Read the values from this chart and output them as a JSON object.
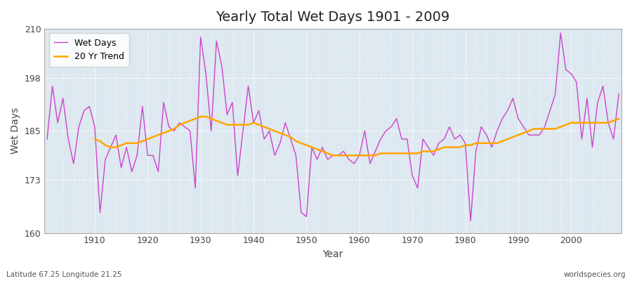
{
  "title": "Yearly Total Wet Days 1901 - 2009",
  "xlabel": "Year",
  "ylabel": "Wet Days",
  "footnote_left": "Latitude 67.25 Longitude 21.25",
  "footnote_right": "worldspecies.org",
  "ylim": [
    160,
    210
  ],
  "yticks": [
    160,
    173,
    185,
    198,
    210
  ],
  "xticks": [
    1910,
    1920,
    1930,
    1940,
    1950,
    1960,
    1970,
    1980,
    1990,
    2000
  ],
  "line_color": "#cc44cc",
  "trend_color": "#FFA500",
  "plot_bg_color": "#dde8f0",
  "fig_bg_color": "#ffffff",
  "years": [
    1901,
    1902,
    1903,
    1904,
    1905,
    1906,
    1907,
    1908,
    1909,
    1910,
    1911,
    1912,
    1913,
    1914,
    1915,
    1916,
    1917,
    1918,
    1919,
    1920,
    1921,
    1922,
    1923,
    1924,
    1925,
    1926,
    1927,
    1928,
    1929,
    1930,
    1931,
    1932,
    1933,
    1934,
    1935,
    1936,
    1937,
    1938,
    1939,
    1940,
    1941,
    1942,
    1943,
    1944,
    1945,
    1946,
    1947,
    1948,
    1949,
    1950,
    1951,
    1952,
    1953,
    1954,
    1955,
    1956,
    1957,
    1958,
    1959,
    1960,
    1961,
    1962,
    1963,
    1964,
    1965,
    1966,
    1967,
    1968,
    1969,
    1970,
    1971,
    1972,
    1973,
    1974,
    1975,
    1976,
    1977,
    1978,
    1979,
    1980,
    1981,
    1982,
    1983,
    1984,
    1985,
    1986,
    1987,
    1988,
    1989,
    1990,
    1991,
    1992,
    1993,
    1994,
    1995,
    1996,
    1997,
    1998,
    1999,
    2000,
    2001,
    2002,
    2003,
    2004,
    2005,
    2006,
    2007,
    2008,
    2009
  ],
  "wet_days": [
    183,
    196,
    187,
    193,
    183,
    177,
    186,
    190,
    191,
    186,
    165,
    178,
    181,
    184,
    176,
    181,
    175,
    179,
    191,
    179,
    179,
    175,
    192,
    186,
    185,
    187,
    186,
    185,
    171,
    208,
    199,
    185,
    207,
    201,
    189,
    192,
    174,
    185,
    196,
    187,
    190,
    183,
    185,
    179,
    182,
    187,
    183,
    179,
    165,
    164,
    181,
    178,
    181,
    178,
    179,
    179,
    180,
    178,
    177,
    179,
    185,
    177,
    180,
    183,
    185,
    186,
    188,
    183,
    183,
    174,
    171,
    183,
    181,
    179,
    182,
    183,
    186,
    183,
    184,
    182,
    163,
    180,
    186,
    184,
    181,
    185,
    188,
    190,
    193,
    188,
    186,
    184,
    184,
    184,
    186,
    190,
    194,
    209,
    200,
    199,
    197,
    183,
    193,
    181,
    192,
    196,
    187,
    183,
    194
  ],
  "trend_years": [
    1910,
    1911,
    1912,
    1913,
    1914,
    1915,
    1916,
    1917,
    1918,
    1919,
    1920,
    1921,
    1922,
    1923,
    1924,
    1925,
    1926,
    1927,
    1928,
    1929,
    1930,
    1931,
    1932,
    1933,
    1934,
    1935,
    1936,
    1937,
    1938,
    1939,
    1940,
    1941,
    1942,
    1943,
    1944,
    1945,
    1946,
    1947,
    1948,
    1949,
    1950,
    1951,
    1952,
    1953,
    1954,
    1955,
    1956,
    1957,
    1958,
    1959,
    1960,
    1961,
    1962,
    1963,
    1964,
    1965,
    1966,
    1967,
    1968,
    1969,
    1970,
    1971,
    1972,
    1973,
    1974,
    1975,
    1976,
    1977,
    1978,
    1979,
    1980,
    1981,
    1982,
    1983,
    1984,
    1985,
    1986,
    1987,
    1988,
    1989,
    1990,
    1991,
    1992,
    1993,
    1994,
    1995,
    1996,
    1997,
    1998,
    1999,
    2000,
    2001,
    2002,
    2003,
    2004,
    2005,
    2006,
    2007,
    2008,
    2009
  ],
  "trend_values": [
    183.0,
    182.5,
    181.5,
    181.0,
    181.0,
    181.5,
    182.0,
    182.0,
    182.0,
    182.5,
    183.0,
    183.5,
    184.0,
    184.5,
    185.0,
    185.5,
    186.5,
    187.0,
    187.5,
    188.0,
    188.5,
    188.5,
    188.0,
    187.5,
    187.0,
    186.5,
    186.5,
    186.5,
    186.5,
    186.5,
    187.0,
    186.5,
    186.0,
    185.5,
    185.0,
    184.5,
    184.0,
    183.5,
    182.5,
    182.0,
    181.5,
    181.0,
    180.5,
    180.0,
    179.5,
    179.0,
    179.0,
    179.0,
    179.0,
    179.0,
    179.0,
    179.0,
    179.0,
    179.0,
    179.5,
    179.5,
    179.5,
    179.5,
    179.5,
    179.5,
    179.5,
    179.5,
    180.0,
    180.0,
    180.0,
    180.5,
    181.0,
    181.0,
    181.0,
    181.0,
    181.5,
    181.5,
    182.0,
    182.0,
    182.0,
    182.0,
    182.0,
    182.5,
    183.0,
    183.5,
    184.0,
    184.5,
    185.0,
    185.5,
    185.5,
    185.5,
    185.5,
    185.5,
    186.0,
    186.5,
    187.0,
    187.0,
    187.0,
    187.0,
    187.0,
    187.0,
    187.0,
    187.0,
    187.5,
    188.0
  ]
}
